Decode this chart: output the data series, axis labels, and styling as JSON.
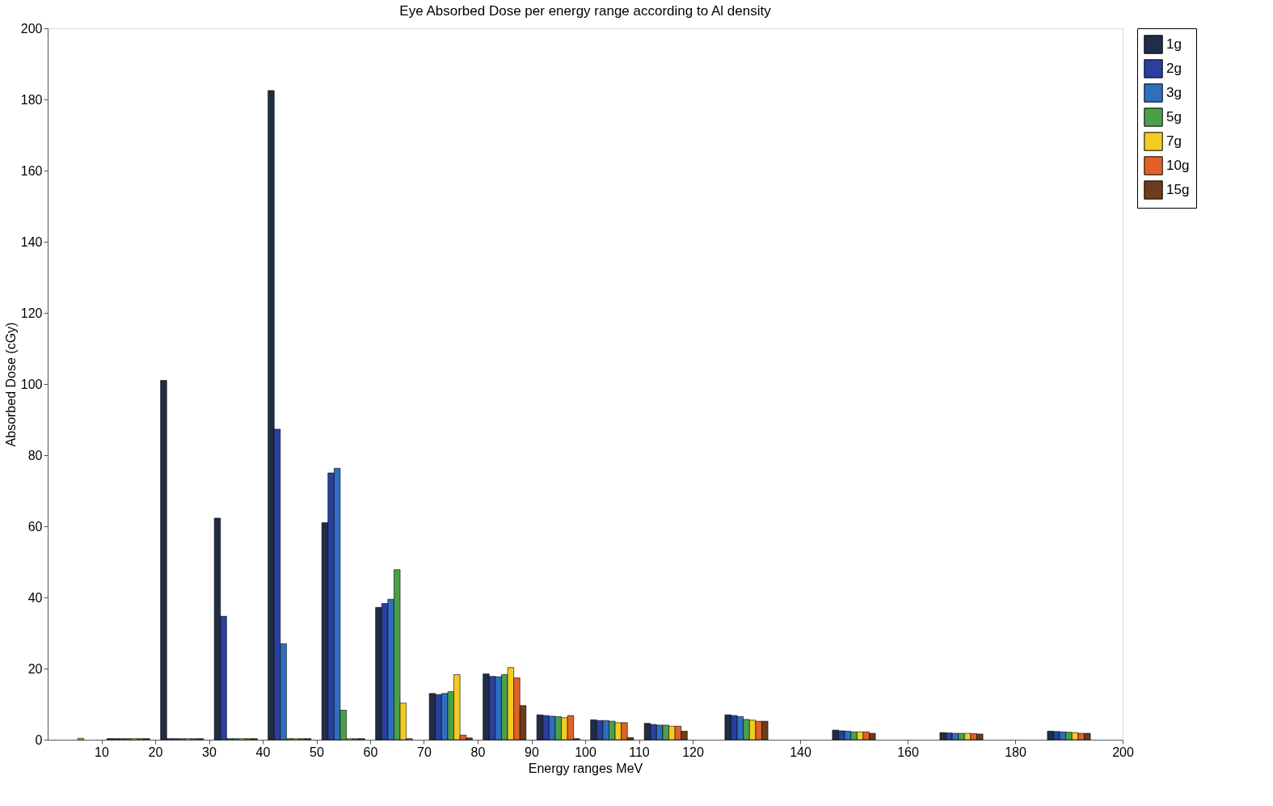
{
  "chart_data": {
    "type": "bar",
    "title": "Eye Absorbed Dose per energy range according to Al density",
    "xlabel": "Energy ranges MeV",
    "ylabel": "Absorbed Dose (cGy)",
    "x": [
      5,
      15,
      25,
      35,
      45,
      55,
      65,
      75,
      85,
      95,
      105,
      115,
      130,
      150,
      170,
      190
    ],
    "series": [
      {
        "name": "1g",
        "color": "#1f2d45",
        "values": [
          null,
          0.3,
          101,
          62.3,
          182.5,
          61,
          37.2,
          13,
          18.5,
          7,
          5.6,
          4.6,
          7,
          2.7,
          2,
          2.4
        ]
      },
      {
        "name": "2g",
        "color": "#2a3f9e",
        "values": [
          null,
          0.3,
          0.3,
          34.7,
          87.3,
          75,
          38.3,
          12.7,
          17.8,
          6.8,
          5.4,
          4.3,
          6.8,
          2.5,
          1.9,
          2.3
        ]
      },
      {
        "name": "3g",
        "color": "#2e6fbf",
        "values": [
          null,
          0.3,
          0.3,
          0.3,
          27,
          76.3,
          39.5,
          13,
          17.7,
          6.6,
          5.4,
          4.1,
          6.5,
          2.4,
          1.8,
          2.2
        ]
      },
      {
        "name": "5g",
        "color": "#4aa04a",
        "values": [
          null,
          0.3,
          0.3,
          0.3,
          0.3,
          8.3,
          47.8,
          13.5,
          18.3,
          6.5,
          5.2,
          4.1,
          5.7,
          2.2,
          1.8,
          2.1
        ]
      },
      {
        "name": "7g",
        "color": "#f2cc1f",
        "values": [
          0.4,
          0.3,
          0.3,
          0.3,
          0.3,
          0.3,
          10.3,
          18.3,
          20.3,
          6.2,
          4.8,
          3.8,
          5.5,
          2.2,
          1.8,
          2
        ]
      },
      {
        "name": "10g",
        "color": "#e0612a",
        "values": [
          null,
          0.3,
          0.3,
          0.3,
          0.3,
          0.3,
          0.3,
          1.3,
          17.4,
          6.8,
          4.8,
          3.8,
          5.2,
          2.2,
          1.7,
          1.8
        ]
      },
      {
        "name": "15g",
        "color": "#6b3d1c",
        "values": [
          null,
          0.3,
          0.3,
          0.3,
          0.3,
          0.3,
          null,
          0.5,
          9.6,
          0.3,
          0.6,
          2.4,
          5.2,
          1.8,
          1.6,
          1.8
        ]
      }
    ],
    "xlim": [
      0,
      200
    ],
    "xticks": [
      10,
      20,
      30,
      40,
      50,
      60,
      70,
      80,
      90,
      100,
      110,
      120,
      140,
      160,
      180,
      200
    ],
    "ylim": [
      0,
      200
    ],
    "yticks": [
      0,
      20,
      40,
      60,
      80,
      100,
      120,
      140,
      160,
      180,
      200
    ],
    "legend": "top right",
    "grid": false
  }
}
